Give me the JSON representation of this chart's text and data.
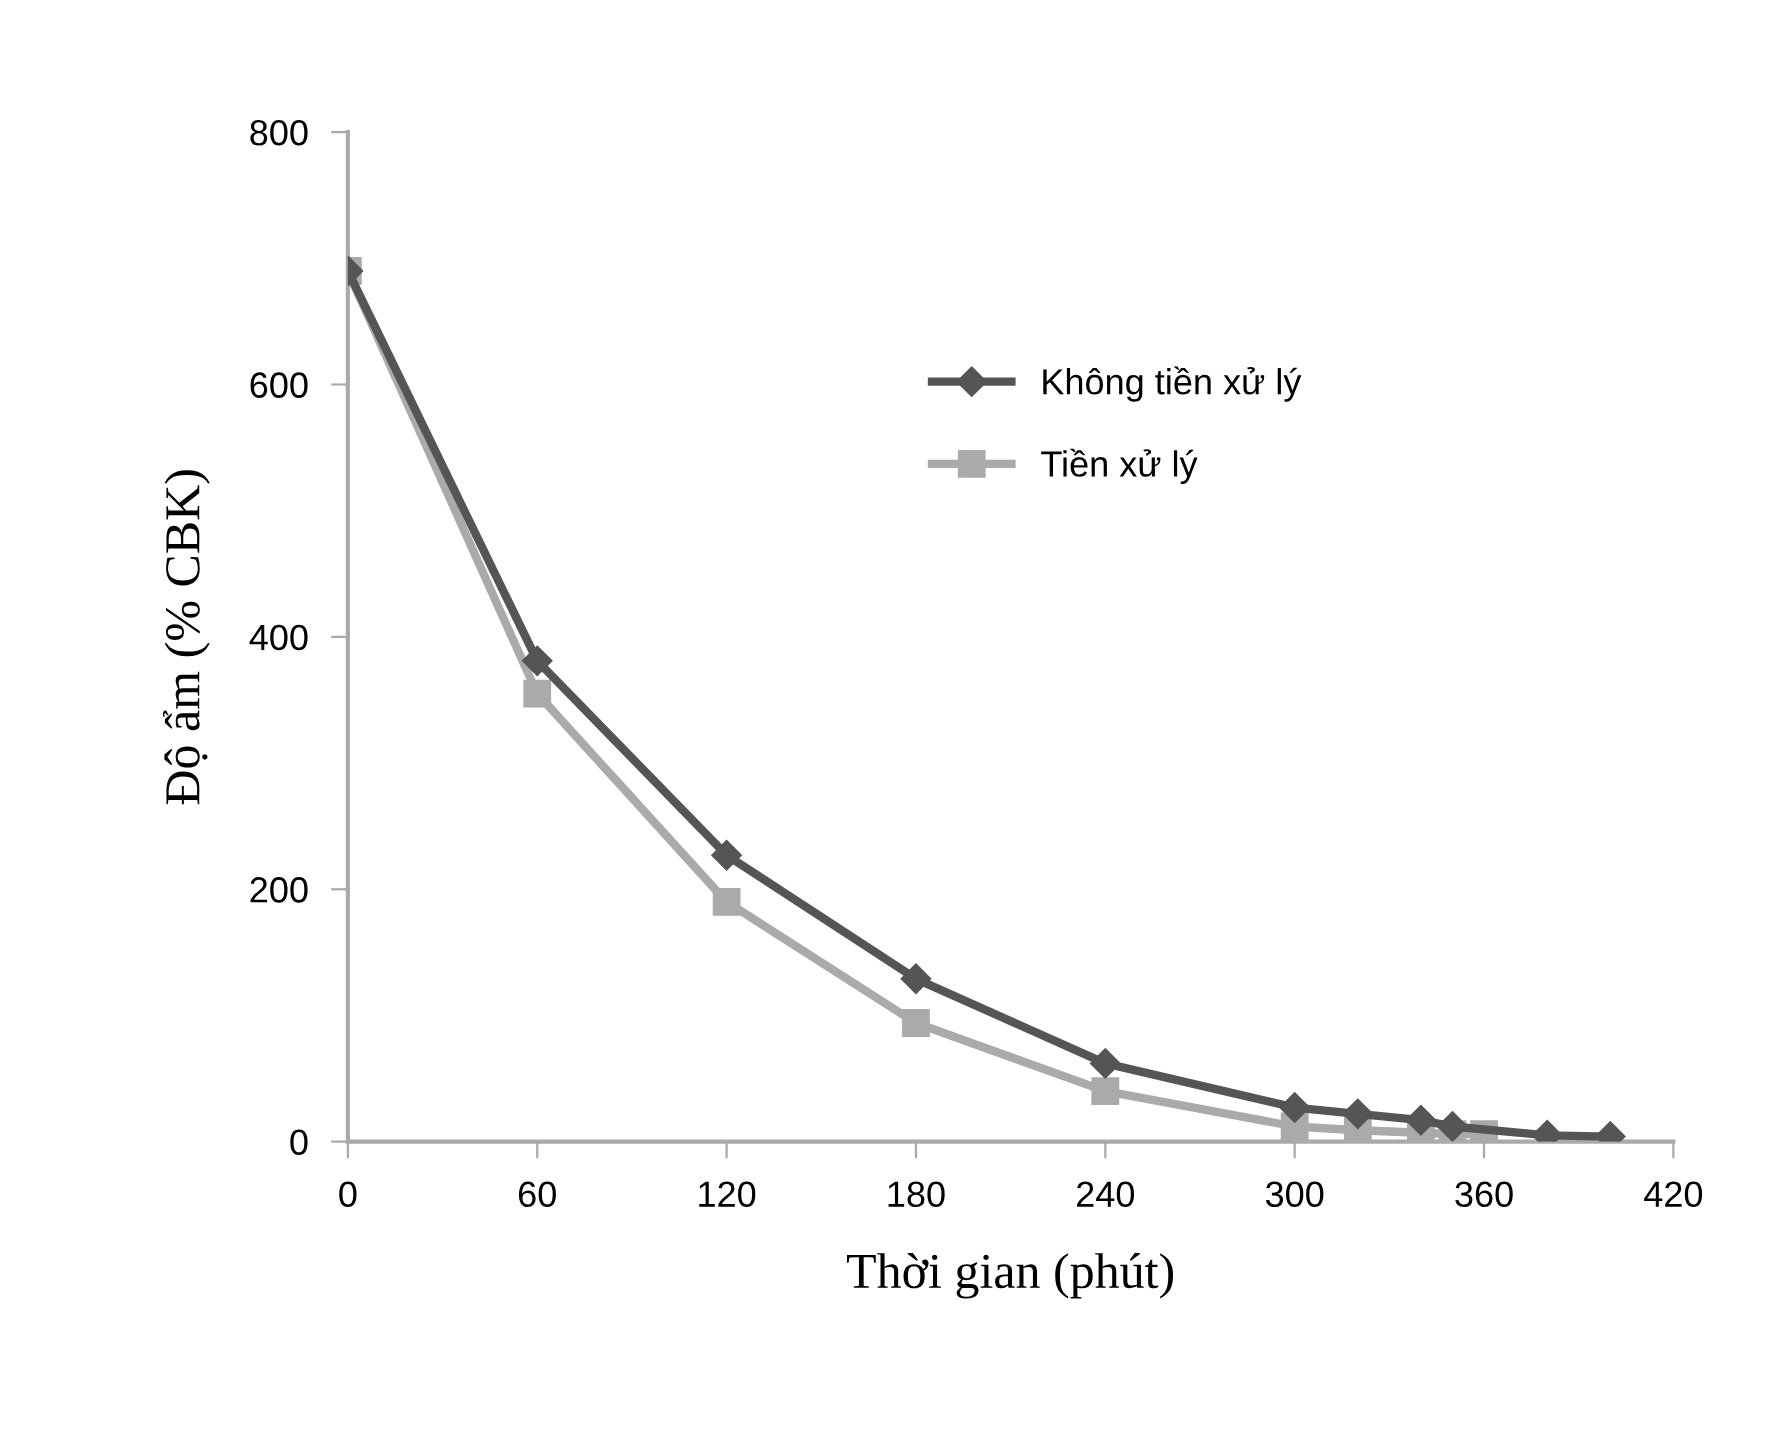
{
  "chart_data": {
    "type": "line",
    "xlabel": "Thời gian (phút)",
    "ylabel": "Độ ẩm (% CBK)",
    "xlim": [
      0,
      420
    ],
    "xticks": [
      0,
      60,
      120,
      180,
      240,
      300,
      360,
      420
    ],
    "ylim": [
      0,
      800
    ],
    "yticks": [
      0,
      200,
      400,
      600,
      800
    ],
    "grid": false,
    "legend": "top",
    "line_style": "solid",
    "series": [
      {
        "name": "Không tiền xử lý",
        "color": "#555555",
        "marker": "diamond",
        "x": [
          0,
          60,
          120,
          180,
          240,
          300,
          320,
          340,
          350,
          380,
          400
        ],
        "values": [
          690,
          381,
          227,
          129,
          62,
          27,
          22,
          17,
          12,
          5,
          4
        ]
      },
      {
        "name": "Tiền xử lý",
        "color": "#aaaaaa",
        "marker": "square",
        "x": [
          0,
          60,
          120,
          180,
          240,
          300,
          320,
          340,
          350,
          360
        ],
        "values": [
          690,
          355,
          190,
          94,
          40,
          12,
          9,
          7,
          6,
          6
        ]
      }
    ]
  }
}
